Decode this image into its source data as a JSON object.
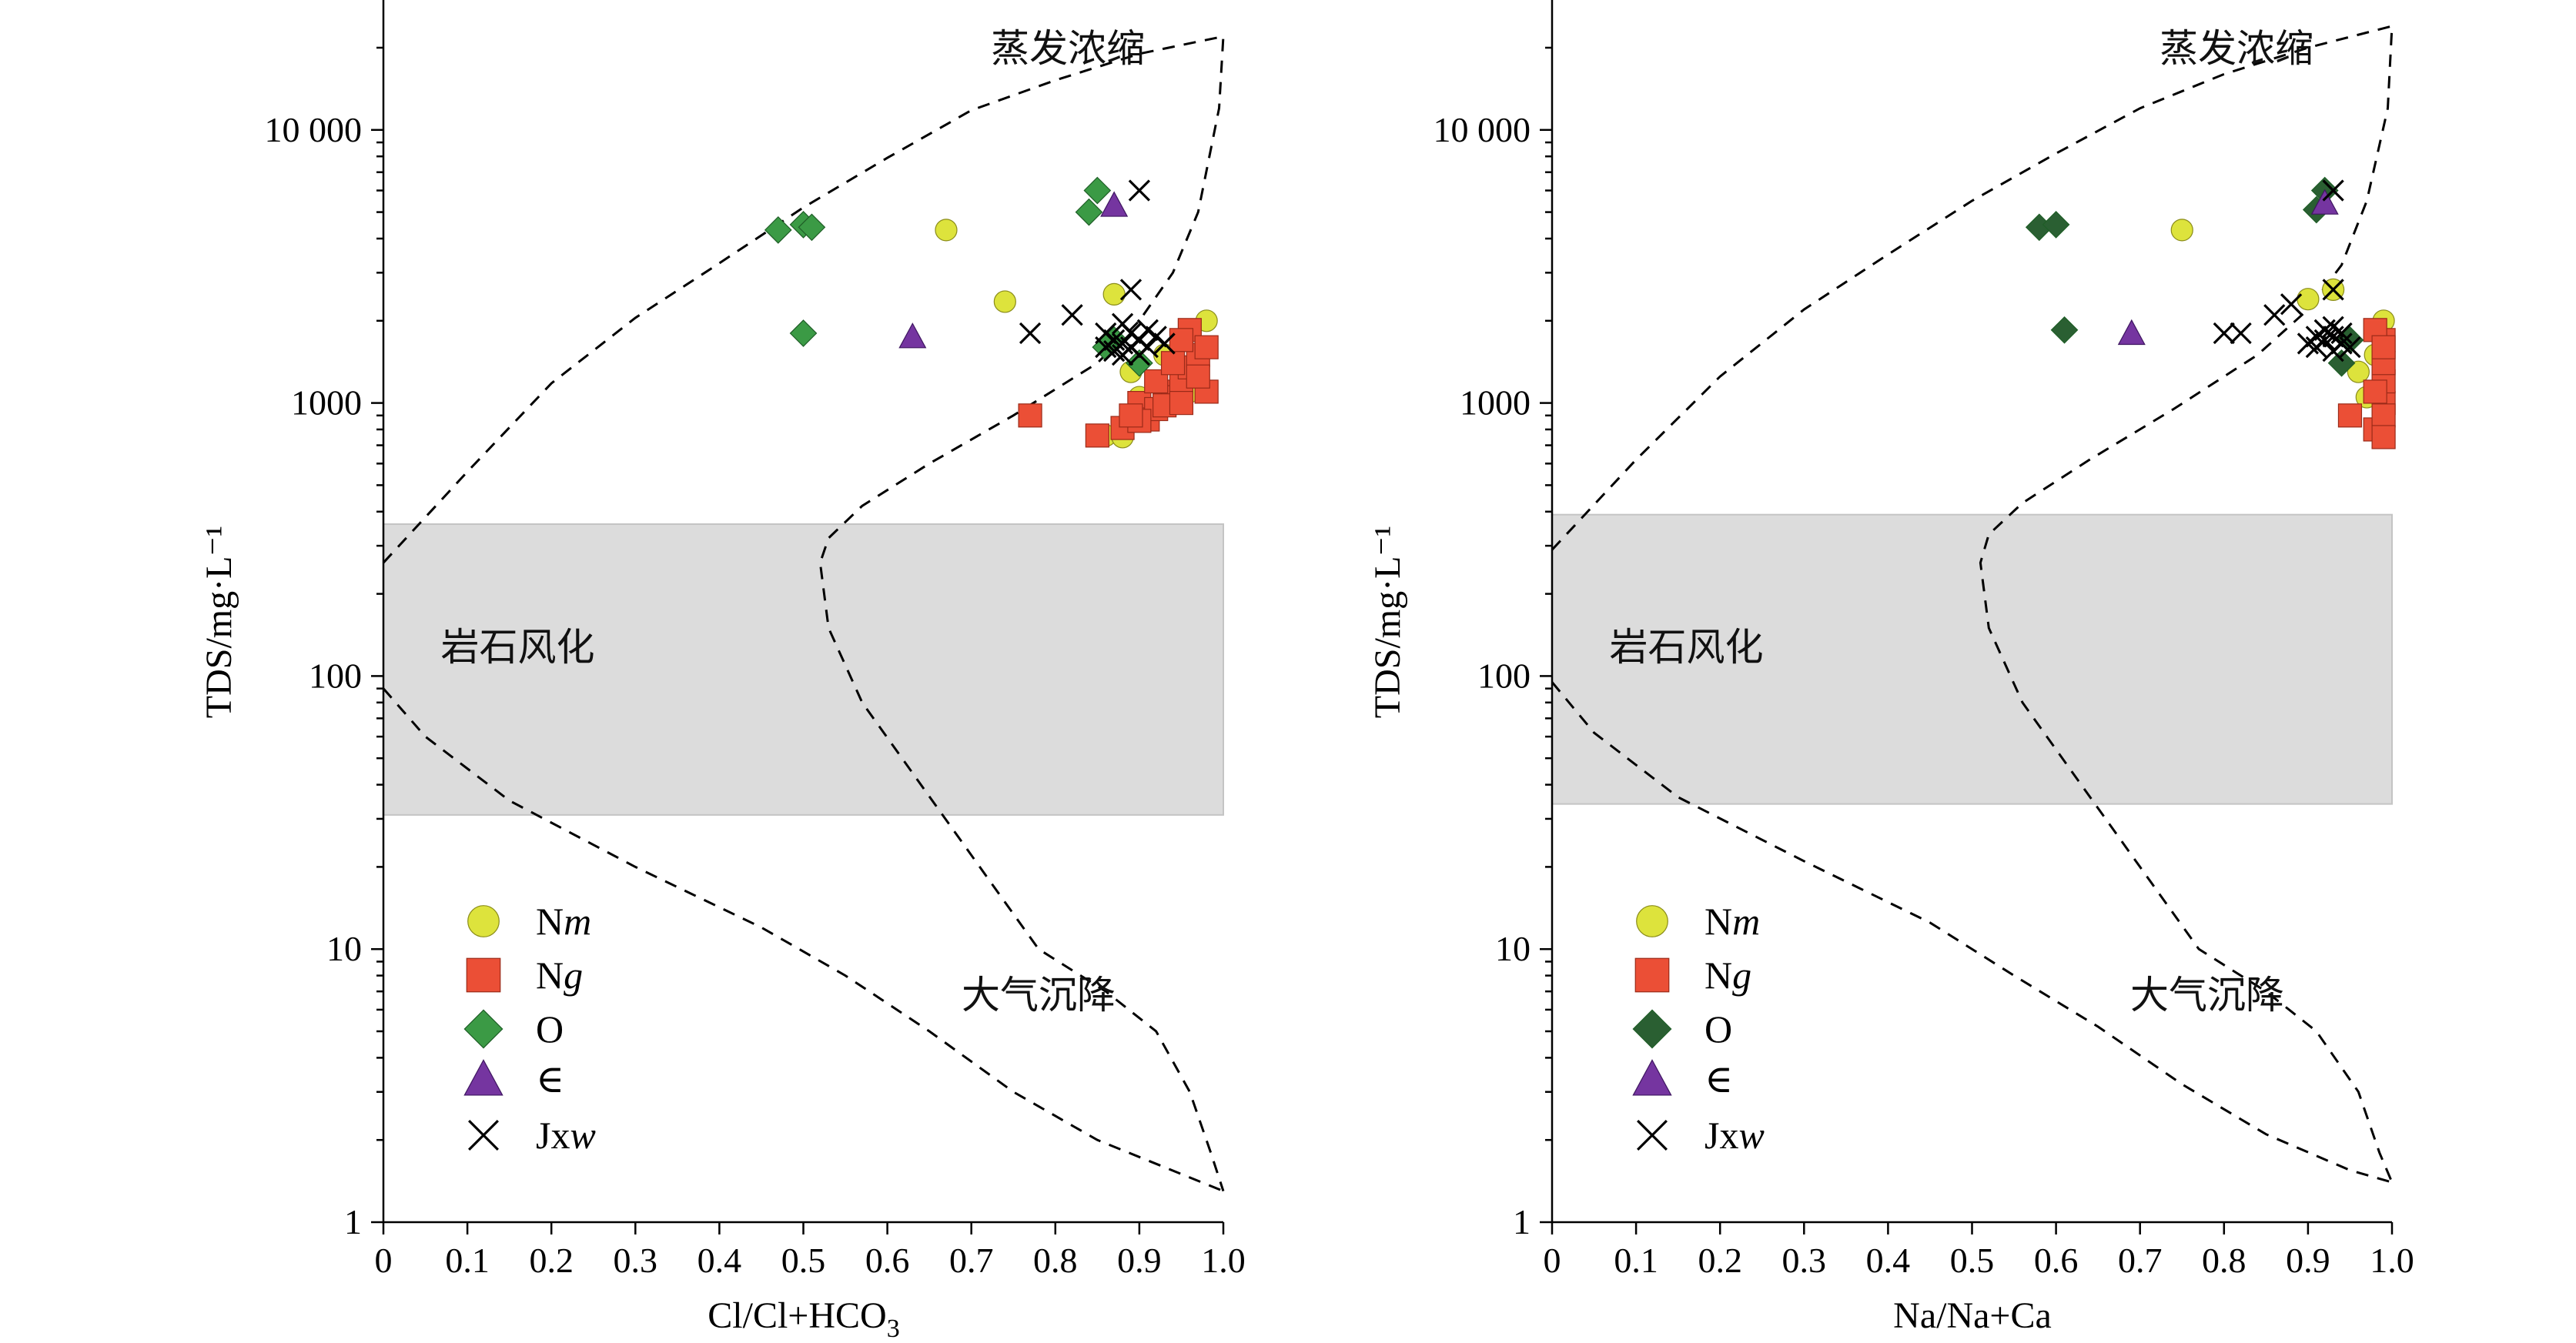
{
  "legend": [
    {
      "key": "Nm",
      "prefix": "N",
      "suffix": "m",
      "marker": "circle",
      "color": "#dde33c"
    },
    {
      "key": "Ng",
      "prefix": "N",
      "suffix": "g",
      "marker": "square",
      "color": "#eb4f36"
    },
    {
      "key": "O",
      "prefix": "O",
      "suffix": "",
      "marker": "diamond",
      "color": "#3b9a45"
    },
    {
      "key": "E",
      "prefix": "∈",
      "suffix": "",
      "marker": "triangle",
      "color": "#7535a0"
    },
    {
      "key": "Jxw",
      "prefix": "Jx",
      "suffix": "w",
      "marker": "cross",
      "color": "#000000"
    }
  ],
  "chart_data": [
    {
      "type": "scatter",
      "xlabel": "Cl/Cl+HCO₃",
      "ylabel": "TDS/mg·L⁻¹",
      "xlim": [
        0,
        1.0
      ],
      "ylim": [
        1,
        30000
      ],
      "yscale": "log",
      "x_ticks": [
        "0",
        "0.1",
        "0.2",
        "0.3",
        "0.4",
        "0.5",
        "0.6",
        "0.7",
        "0.8",
        "0.9",
        "1.0"
      ],
      "y_ticks": [
        "1",
        "10",
        "100",
        "1000",
        "10 000"
      ],
      "band": {
        "y_low": 31,
        "y_high": 360
      },
      "region_labels": {
        "top": "蒸发浓缩",
        "middle": "岩石风化",
        "bottom": "大气沉降"
      },
      "boundary_upper": [
        [
          0,
          260
        ],
        [
          0.1,
          560
        ],
        [
          0.2,
          1180
        ],
        [
          0.3,
          2050
        ],
        [
          0.4,
          3250
        ],
        [
          0.5,
          5200
        ],
        [
          0.6,
          7900
        ],
        [
          0.7,
          11800
        ],
        [
          0.8,
          15200
        ],
        [
          0.9,
          19000
        ],
        [
          1.0,
          22000
        ],
        [
          0.995,
          12000
        ],
        [
          0.97,
          5000
        ],
        [
          0.94,
          3000
        ],
        [
          0.9,
          2000
        ],
        [
          0.85,
          1400
        ],
        [
          0.75,
          900
        ],
        [
          0.65,
          600
        ],
        [
          0.57,
          420
        ],
        [
          0.53,
          320
        ],
        [
          0.52,
          260
        ],
        [
          0.53,
          150
        ],
        [
          0.57,
          80
        ],
        [
          0.64,
          40
        ],
        [
          0.71,
          20
        ],
        [
          0.78,
          10
        ],
        [
          0.86,
          7
        ],
        [
          0.92,
          5
        ],
        [
          0.96,
          3
        ],
        [
          0.985,
          1.8
        ],
        [
          1.0,
          1.3
        ]
      ],
      "boundary_lower": [
        [
          0,
          90
        ],
        [
          0.05,
          60
        ],
        [
          0.15,
          35
        ],
        [
          0.3,
          20
        ],
        [
          0.45,
          12
        ],
        [
          0.55,
          8
        ],
        [
          0.65,
          5
        ],
        [
          0.75,
          3
        ],
        [
          0.85,
          2
        ],
        [
          0.95,
          1.5
        ],
        [
          1.0,
          1.3
        ]
      ],
      "series": [
        {
          "name": "Nm",
          "points": [
            [
              0.67,
              4300
            ],
            [
              0.74,
              2350
            ],
            [
              0.87,
              2500
            ],
            [
              0.9,
              1050
            ],
            [
              0.95,
              1200
            ],
            [
              0.98,
              2000
            ],
            [
              0.86,
              760
            ],
            [
              0.92,
              960
            ],
            [
              0.89,
              1300
            ],
            [
              0.93,
              1500
            ],
            [
              0.88,
              750
            ],
            [
              0.96,
              1100
            ]
          ]
        },
        {
          "name": "Ng",
          "points": [
            [
              0.77,
              900
            ],
            [
              0.85,
              760
            ],
            [
              0.88,
              810
            ],
            [
              0.9,
              1000
            ],
            [
              0.91,
              870
            ],
            [
              0.92,
              950
            ],
            [
              0.93,
              1100
            ],
            [
              0.94,
              1050
            ],
            [
              0.95,
              1200
            ],
            [
              0.96,
              1350
            ],
            [
              0.97,
              1500
            ],
            [
              0.98,
              1100
            ],
            [
              0.96,
              1850
            ],
            [
              0.95,
              1700
            ],
            [
              0.97,
              1250
            ],
            [
              0.93,
              980
            ],
            [
              0.9,
              860
            ],
            [
              0.92,
              1200
            ],
            [
              0.89,
              900
            ],
            [
              0.98,
              1600
            ],
            [
              0.94,
              1400
            ],
            [
              0.95,
              1000
            ]
          ]
        },
        {
          "name": "O",
          "points": [
            [
              0.47,
              4300
            ],
            [
              0.5,
              4500
            ],
            [
              0.51,
              4400
            ],
            [
              0.5,
              1800
            ],
            [
              0.85,
              6000
            ],
            [
              0.84,
              5000
            ],
            [
              0.87,
              1700
            ],
            [
              0.9,
              1400
            ],
            [
              0.86,
              1600
            ]
          ]
        },
        {
          "name": "∈",
          "points": [
            [
              0.63,
              1750
            ],
            [
              0.87,
              5300
            ]
          ]
        },
        {
          "name": "Jxw",
          "points": [
            [
              0.9,
              6000
            ],
            [
              0.77,
              1800
            ],
            [
              0.82,
              2100
            ],
            [
              0.89,
              2600
            ],
            [
              0.86,
              1800
            ],
            [
              0.87,
              1700
            ],
            [
              0.88,
              1650
            ],
            [
              0.89,
              1800
            ],
            [
              0.9,
              1700
            ],
            [
              0.91,
              1600
            ],
            [
              0.92,
              1750
            ],
            [
              0.93,
              1650
            ],
            [
              0.88,
              1950
            ],
            [
              0.9,
              1500
            ],
            [
              0.87,
              1550
            ],
            [
              0.89,
              1600
            ],
            [
              0.91,
              1850
            ],
            [
              0.88,
              1500
            ],
            [
              0.86,
              1600
            ]
          ]
        }
      ]
    },
    {
      "type": "scatter",
      "xlabel": "Na/Na+Ca",
      "ylabel": "TDS/mg·L⁻¹",
      "xlim": [
        0,
        1.0
      ],
      "ylim": [
        1,
        30000
      ],
      "yscale": "log",
      "x_ticks": [
        "0",
        "0.1",
        "0.2",
        "0.3",
        "0.4",
        "0.5",
        "0.6",
        "0.7",
        "0.8",
        "0.9",
        "1.0"
      ],
      "y_ticks": [
        "1",
        "10",
        "100",
        "1000",
        "10 000"
      ],
      "band": {
        "y_low": 34,
        "y_high": 390
      },
      "region_labels": {
        "top": "蒸发浓缩",
        "middle": "岩石风化",
        "bottom": "大气沉降"
      },
      "boundary_upper": [
        [
          0,
          290
        ],
        [
          0.1,
          620
        ],
        [
          0.2,
          1250
        ],
        [
          0.3,
          2200
        ],
        [
          0.4,
          3500
        ],
        [
          0.5,
          5500
        ],
        [
          0.6,
          8200
        ],
        [
          0.7,
          12000
        ],
        [
          0.8,
          16000
        ],
        [
          0.9,
          20000
        ],
        [
          1.0,
          24000
        ],
        [
          0.995,
          12000
        ],
        [
          0.97,
          5500
        ],
        [
          0.94,
          3200
        ],
        [
          0.9,
          2200
        ],
        [
          0.84,
          1500
        ],
        [
          0.74,
          950
        ],
        [
          0.64,
          620
        ],
        [
          0.56,
          430
        ],
        [
          0.52,
          330
        ],
        [
          0.51,
          260
        ],
        [
          0.52,
          150
        ],
        [
          0.56,
          80
        ],
        [
          0.63,
          40
        ],
        [
          0.7,
          20
        ],
        [
          0.77,
          10
        ],
        [
          0.85,
          7
        ],
        [
          0.91,
          5
        ],
        [
          0.96,
          3
        ],
        [
          0.985,
          1.8
        ],
        [
          1.0,
          1.4
        ]
      ],
      "boundary_lower": [
        [
          0,
          95
        ],
        [
          0.05,
          62
        ],
        [
          0.15,
          36
        ],
        [
          0.3,
          21
        ],
        [
          0.45,
          12.5
        ],
        [
          0.55,
          8
        ],
        [
          0.65,
          5.2
        ],
        [
          0.75,
          3.2
        ],
        [
          0.85,
          2.1
        ],
        [
          0.95,
          1.55
        ],
        [
          1.0,
          1.4
        ]
      ],
      "series": [
        {
          "name": "Nm",
          "points": [
            [
              0.75,
              4300
            ],
            [
              0.9,
              2400
            ],
            [
              0.93,
              2600
            ],
            [
              0.96,
              1300
            ],
            [
              0.97,
              1050
            ],
            [
              0.99,
              2000
            ],
            [
              0.99,
              760
            ],
            [
              0.98,
              1500
            ]
          ]
        },
        {
          "name": "Ng",
          "points": [
            [
              0.95,
              900
            ],
            [
              0.98,
              800
            ],
            [
              0.99,
              1000
            ],
            [
              0.99,
              1200
            ],
            [
              0.99,
              1400
            ],
            [
              0.99,
              1700
            ],
            [
              0.98,
              1850
            ],
            [
              0.99,
              900
            ],
            [
              0.98,
              1100
            ],
            [
              0.99,
              1600
            ],
            [
              0.99,
              750
            ]
          ]
        },
        {
          "name": "O",
          "points": [
            [
              0.58,
              4400
            ],
            [
              0.6,
              4500
            ],
            [
              0.61,
              1850
            ],
            [
              0.91,
              5100
            ],
            [
              0.92,
              6000
            ],
            [
              0.94,
              1400
            ],
            [
              0.95,
              1700
            ]
          ]
        },
        {
          "name": "∈",
          "points": [
            [
              0.69,
              1800
            ],
            [
              0.92,
              5400
            ]
          ]
        },
        {
          "name": "Jxw",
          "points": [
            [
              0.93,
              6000
            ],
            [
              0.8,
              1800
            ],
            [
              0.82,
              1800
            ],
            [
              0.86,
              2100
            ],
            [
              0.88,
              2300
            ],
            [
              0.93,
              2600
            ],
            [
              0.91,
              1600
            ],
            [
              0.92,
              1700
            ],
            [
              0.93,
              1750
            ],
            [
              0.94,
              1650
            ],
            [
              0.92,
              1850
            ],
            [
              0.93,
              1550
            ],
            [
              0.9,
              1650
            ],
            [
              0.94,
              1800
            ],
            [
              0.95,
              1600
            ],
            [
              0.91,
              1750
            ],
            [
              0.93,
              1900
            ]
          ]
        }
      ]
    }
  ]
}
